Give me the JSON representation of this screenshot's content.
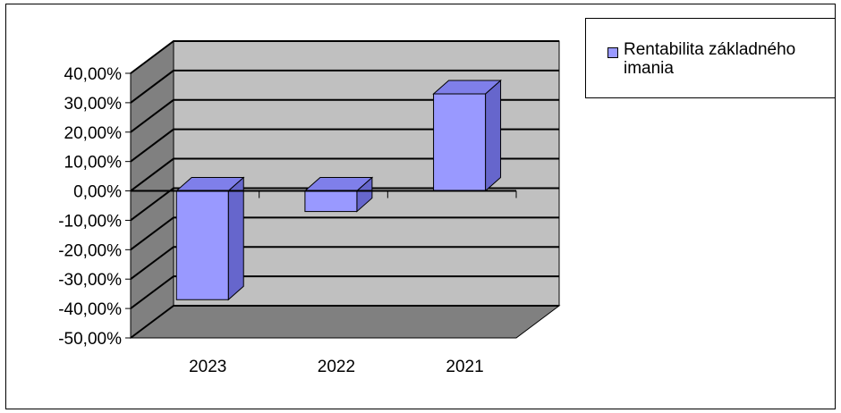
{
  "chart_data": {
    "type": "bar",
    "title": "",
    "xlabel": "",
    "ylabel": "",
    "categories": [
      "2023",
      "2022",
      "2021"
    ],
    "series": [
      {
        "name": "Rentabilita základného imania",
        "values": [
          -0.37,
          -0.07,
          0.33
        ]
      }
    ],
    "ylim": [
      -0.5,
      0.4
    ],
    "yticks": [
      "40,00%",
      "30,00%",
      "20,00%",
      "10,00%",
      "0,00%",
      "-10,00%",
      "-20,00%",
      "-30,00%",
      "-40,00%",
      "-50,00%"
    ],
    "grid": true,
    "legend": "top-right",
    "colors": {
      "bar_front": "#9999ff",
      "bar_side": "#6666cc",
      "bar_top": "#7f7fea",
      "back_wall": "#c0c0c0",
      "side_wall": "#808080",
      "floor": "#808080"
    }
  }
}
